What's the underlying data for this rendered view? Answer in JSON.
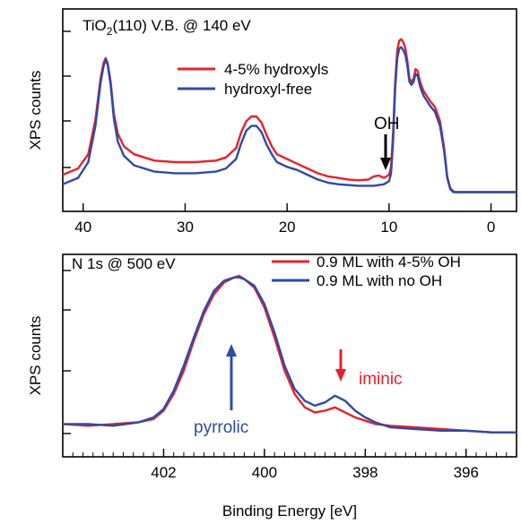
{
  "chart_data": [
    {
      "type": "line",
      "title_main": "TiO",
      "title_sub": "2",
      "title_rest": "(110) V.B. @ 140 eV",
      "xlabel": "",
      "ylabel": "XPS counts",
      "xlim": [
        42,
        -2.5
      ],
      "ylim": [
        0,
        1
      ],
      "xticks": [
        40,
        30,
        20,
        10,
        0
      ],
      "xtick_labels": [
        "40",
        "30",
        "20",
        "10",
        "0"
      ],
      "legend_position": "top-center",
      "annotations": [
        {
          "text": "OH",
          "x": 11,
          "arrow": "down",
          "color": "#000000"
        }
      ],
      "series": [
        {
          "name": "4-5% hydroxyls",
          "color": "#e8212b",
          "x": [
            42,
            40.5,
            39.5,
            38.8,
            38.3,
            38.0,
            37.8,
            37.6,
            37.3,
            37.0,
            36.6,
            36.0,
            35.0,
            33.0,
            31.0,
            29.0,
            27.0,
            26.0,
            25.0,
            24.5,
            24.0,
            23.5,
            23.0,
            22.5,
            22.0,
            21.5,
            21.0,
            20.0,
            19.0,
            18.0,
            17.0,
            16.0,
            15.0,
            14.0,
            13.0,
            12.0,
            11.5,
            11.0,
            10.5,
            10.0,
            9.8,
            9.6,
            9.4,
            9.2,
            9.0,
            8.8,
            8.6,
            8.4,
            8.2,
            8.0,
            7.8,
            7.6,
            7.4,
            7.2,
            7.0,
            6.8,
            6.6,
            6.4,
            6.2,
            6.0,
            5.5,
            5.0,
            4.6,
            4.3,
            4.0,
            3.7,
            3.5,
            3.0,
            2.0,
            0,
            -2.5
          ],
          "y": [
            0.13,
            0.17,
            0.26,
            0.48,
            0.74,
            0.84,
            0.87,
            0.84,
            0.72,
            0.52,
            0.39,
            0.31,
            0.26,
            0.22,
            0.21,
            0.21,
            0.22,
            0.24,
            0.3,
            0.4,
            0.47,
            0.5,
            0.5,
            0.46,
            0.38,
            0.31,
            0.26,
            0.23,
            0.2,
            0.17,
            0.14,
            0.12,
            0.11,
            0.1,
            0.095,
            0.1,
            0.12,
            0.125,
            0.11,
            0.13,
            0.18,
            0.4,
            0.72,
            0.92,
            0.98,
            0.99,
            0.97,
            0.93,
            0.85,
            0.74,
            0.72,
            0.74,
            0.8,
            0.79,
            0.73,
            0.69,
            0.66,
            0.64,
            0.62,
            0.6,
            0.56,
            0.47,
            0.3,
            0.12,
            0.045,
            0.025,
            0.02,
            0.02,
            0.02,
            0.02,
            0.02
          ]
        },
        {
          "name": "hydroxyl-free",
          "color": "#2e4aa8",
          "x": [
            42,
            40.5,
            39.5,
            38.8,
            38.3,
            38.0,
            37.8,
            37.6,
            37.3,
            37.0,
            36.6,
            36.0,
            35.0,
            33.0,
            31.0,
            29.0,
            27.0,
            26.0,
            25.0,
            24.5,
            24.0,
            23.5,
            23.0,
            22.5,
            22.0,
            21.5,
            21.0,
            20.0,
            19.0,
            18.0,
            17.0,
            16.0,
            15.0,
            14.0,
            13.0,
            12.0,
            11.5,
            11.0,
            10.5,
            10.0,
            9.8,
            9.6,
            9.4,
            9.2,
            9.0,
            8.8,
            8.6,
            8.4,
            8.2,
            8.0,
            7.8,
            7.6,
            7.4,
            7.2,
            7.0,
            6.8,
            6.6,
            6.4,
            6.2,
            6.0,
            5.5,
            5.0,
            4.6,
            4.3,
            4.0,
            3.7,
            3.5,
            3.0,
            2.0,
            0,
            -2.5
          ],
          "y": [
            0.07,
            0.11,
            0.21,
            0.44,
            0.71,
            0.82,
            0.86,
            0.83,
            0.7,
            0.49,
            0.34,
            0.25,
            0.19,
            0.15,
            0.14,
            0.14,
            0.15,
            0.17,
            0.23,
            0.33,
            0.41,
            0.44,
            0.44,
            0.4,
            0.32,
            0.26,
            0.21,
            0.18,
            0.16,
            0.13,
            0.1,
            0.08,
            0.07,
            0.065,
            0.06,
            0.06,
            0.06,
            0.065,
            0.07,
            0.09,
            0.14,
            0.35,
            0.68,
            0.87,
            0.93,
            0.94,
            0.92,
            0.89,
            0.82,
            0.72,
            0.7,
            0.72,
            0.77,
            0.76,
            0.7,
            0.66,
            0.63,
            0.61,
            0.59,
            0.57,
            0.53,
            0.44,
            0.28,
            0.11,
            0.04,
            0.02,
            0.02,
            0.02,
            0.02,
            0.02,
            0.02
          ]
        }
      ]
    },
    {
      "type": "line",
      "title": "N 1s @ 500 eV",
      "xlabel": "Binding Energy [eV]",
      "ylabel": "XPS counts",
      "xlim": [
        404,
        395
      ],
      "ylim": [
        0,
        1
      ],
      "xticks": [
        402,
        400,
        398,
        396
      ],
      "xtick_labels": [
        "402",
        "400",
        "398",
        "396"
      ],
      "legend_position": "top-right",
      "annotations": [
        {
          "text": "pyrrolic",
          "x": 400.5,
          "arrow": "up",
          "color": "#2e4aa8"
        },
        {
          "text": "iminic",
          "x": 398.5,
          "arrow": "down",
          "color": "#e8212b"
        }
      ],
      "series": [
        {
          "name": "0.9 ML with 4-5% OH",
          "color": "#e8212b",
          "x": [
            404,
            403.5,
            403.0,
            402.5,
            402.2,
            402.0,
            401.8,
            401.6,
            401.4,
            401.2,
            401.0,
            400.8,
            400.6,
            400.5,
            400.4,
            400.2,
            400.0,
            399.8,
            399.6,
            399.4,
            399.2,
            399.0,
            398.8,
            398.6,
            398.4,
            398.2,
            398.0,
            397.8,
            397.5,
            397.0,
            396.5,
            396.0,
            395.5,
            395.0
          ],
          "y": [
            0.1,
            0.09,
            0.1,
            0.11,
            0.13,
            0.18,
            0.28,
            0.42,
            0.6,
            0.76,
            0.88,
            0.95,
            0.98,
            0.99,
            0.97,
            0.92,
            0.8,
            0.62,
            0.42,
            0.28,
            0.2,
            0.17,
            0.18,
            0.2,
            0.17,
            0.14,
            0.12,
            0.1,
            0.09,
            0.08,
            0.07,
            0.06,
            0.05,
            0.05
          ]
        },
        {
          "name": "0.9 ML with no OH",
          "color": "#2e4aa8",
          "x": [
            404,
            403.5,
            403.0,
            402.5,
            402.2,
            402.0,
            401.8,
            401.6,
            401.4,
            401.2,
            401.0,
            400.8,
            400.6,
            400.5,
            400.4,
            400.2,
            400.0,
            399.8,
            399.6,
            399.4,
            399.2,
            399.0,
            398.8,
            398.6,
            398.4,
            398.2,
            398.0,
            397.8,
            397.5,
            397.0,
            396.5,
            396.0,
            395.5,
            395.0
          ],
          "y": [
            0.1,
            0.1,
            0.09,
            0.11,
            0.14,
            0.19,
            0.3,
            0.45,
            0.62,
            0.78,
            0.9,
            0.96,
            0.98,
            0.98,
            0.97,
            0.93,
            0.82,
            0.65,
            0.45,
            0.31,
            0.24,
            0.21,
            0.23,
            0.27,
            0.24,
            0.18,
            0.14,
            0.11,
            0.08,
            0.07,
            0.06,
            0.06,
            0.05,
            0.05
          ]
        }
      ]
    }
  ]
}
